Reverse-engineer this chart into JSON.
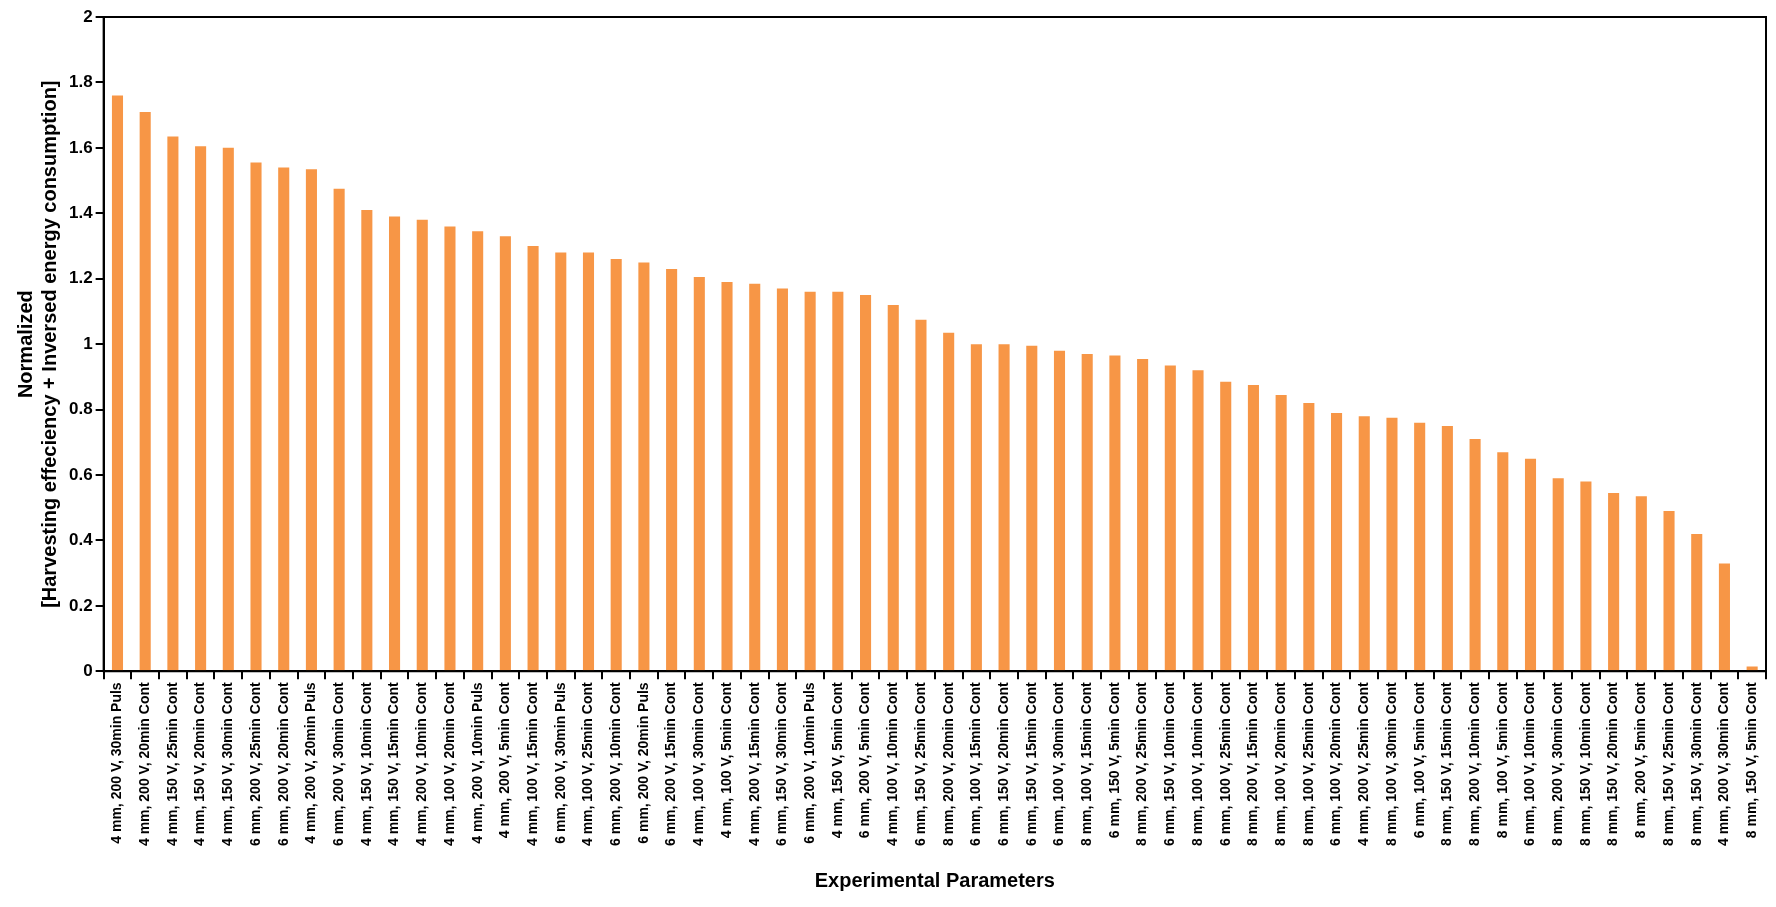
{
  "chart_data": {
    "type": "bar",
    "xlabel": "Experimental Parameters",
    "ylabel": "Normalized\n[Harvesting effeciency + Inversed energy consumption]",
    "categories": [
      "4 mm, 200 V, 30min Puls",
      "4 mm, 200 V, 20min Cont",
      "4 mm, 150 V, 25min Cont",
      "4 mm, 150 V, 20min Cont",
      "4 mm, 150 V, 30min Cont",
      "6 mm, 200 V, 25min Cont",
      "6 mm, 200 V, 20min Cont",
      "4 mm, 200 V, 20min Puls",
      "6 mm, 200 V, 30min Cont",
      "4 mm, 150 V, 10min Cont",
      "4 mm, 150 V, 15min Cont",
      "4 mm, 200 V, 10min Cont",
      "4 mm, 100 V, 20min Cont",
      "4 mm, 200 V, 10min Puls",
      "4 mm, 200 V, 5min Cont",
      "4 mm, 100 V, 15min Cont",
      "6 mm, 200 V, 30min Puls",
      "4 mm, 100 V, 25min Cont",
      "6 mm, 200 V, 10min Cont",
      "6 mm, 200 V, 20min Puls",
      "6 mm, 200 V, 15min Cont",
      "4 mm, 100 V, 30min Cont",
      "4 mm, 100 V, 5min Cont",
      "4 mm, 200 V, 15min Cont",
      "6 mm, 150 V, 30min Cont",
      "6 mm, 200 V, 10min Puls",
      "4 mm, 150 V, 5min Cont",
      "6 mm, 200 V, 5min Cont",
      "4 mm, 100 V, 10min Cont",
      "6 mm, 150 V, 25min Cont",
      "8 mm, 200 V, 20min Cont",
      "6 mm, 100 V, 15min Cont",
      "6 mm, 150 V, 20min Cont",
      "6 mm, 150 V, 15min Cont",
      "6 mm, 100 V, 30min Cont",
      "8 mm, 100 V, 15min Cont",
      "6 mm, 150 V, 5min Cont",
      "8 mm, 200 V, 25min Cont",
      "6 mm, 150 V, 10min Cont",
      "8 mm, 100 V, 10min Cont",
      "6 mm, 100 V, 25min Cont",
      "8 mm, 200 V, 15min Cont",
      "8 mm, 100 V, 20min Cont",
      "8 mm, 100 V, 25min Cont",
      "6 mm, 100 V, 20min Cont",
      "4 mm, 200 V, 25min Cont",
      "8 mm, 100 V, 30min Cont",
      "6 mm, 100 V, 5min Cont",
      "8 mm, 150 V, 15min Cont",
      "8 mm, 200 V, 10min Cont",
      "8 mm, 100 V, 5min Cont",
      "6 mm, 100 V, 10min Cont",
      "8 mm, 200 V, 30min Cont",
      "8 mm, 150 V, 10min Cont",
      "8 mm, 150 V, 20min Cont",
      "8 mm, 200 V, 5min Cont",
      "8 mm, 150 V, 25min Cont",
      "8 mm, 150 V, 30min Cont",
      "4 mm, 200 V, 30min Cont",
      "8 mm, 150 V, 5min Cont"
    ],
    "values": [
      1.76,
      1.71,
      1.635,
      1.605,
      1.6,
      1.555,
      1.54,
      1.535,
      1.475,
      1.41,
      1.39,
      1.38,
      1.36,
      1.345,
      1.33,
      1.3,
      1.28,
      1.28,
      1.26,
      1.25,
      1.23,
      1.205,
      1.19,
      1.185,
      1.17,
      1.16,
      1.16,
      1.15,
      1.12,
      1.075,
      1.035,
      1.0,
      1.0,
      0.995,
      0.98,
      0.97,
      0.965,
      0.955,
      0.935,
      0.92,
      0.885,
      0.875,
      0.845,
      0.82,
      0.79,
      0.78,
      0.775,
      0.76,
      0.75,
      0.71,
      0.67,
      0.65,
      0.59,
      0.58,
      0.545,
      0.535,
      0.49,
      0.42,
      0.33,
      0.015
    ],
    "color": "#f79646",
    "ylim": [
      0,
      2
    ],
    "yticks": [
      0,
      0.2,
      0.4,
      0.6,
      0.8,
      1,
      1.2,
      1.4,
      1.6,
      1.8,
      2
    ],
    "grid": false,
    "legend": false
  }
}
